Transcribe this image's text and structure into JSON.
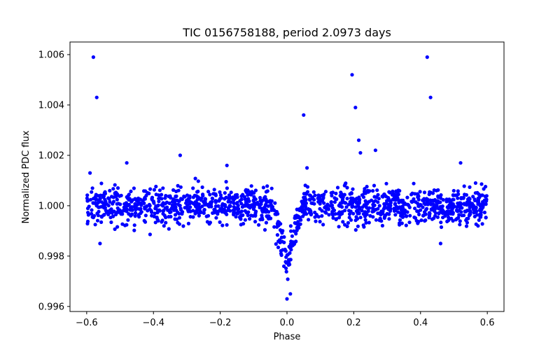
{
  "chart_data": {
    "type": "scatter",
    "title": "TIC 0156758188, period 2.0973 days",
    "xlabel": "Phase",
    "ylabel": "Normalized PDC flux",
    "xlim": [
      -0.65,
      0.65
    ],
    "ylim": [
      0.9958,
      1.0065
    ],
    "xticks": [
      -0.6,
      -0.4,
      -0.2,
      0.0,
      0.2,
      0.4,
      0.6
    ],
    "xtick_labels": [
      "−0.6",
      "−0.4",
      "−0.2",
      "0.0",
      "0.2",
      "0.4",
      "0.6"
    ],
    "yticks": [
      0.996,
      0.998,
      1.0,
      1.002,
      1.004,
      1.006
    ],
    "ytick_labels": [
      "0.996",
      "0.998",
      "1.000",
      "1.002",
      "1.004",
      "1.006"
    ],
    "grid": false,
    "marker_color": "#0000ff",
    "model": {
      "x_range": [
        -0.6,
        0.6
      ],
      "period_phase": 0.4,
      "baseline": 1.0,
      "out_of_transit_spread": 0.0004,
      "transit_center": 0.0,
      "transit_depth": 0.0027,
      "transit_half_width": 0.05,
      "n_points": 1400
    },
    "outliers": [
      {
        "x": -0.58,
        "y": 1.0059
      },
      {
        "x": -0.57,
        "y": 1.0043
      },
      {
        "x": 0.42,
        "y": 1.0059
      },
      {
        "x": 0.43,
        "y": 1.0043
      },
      {
        "x": 0.195,
        "y": 1.0052
      },
      {
        "x": 0.205,
        "y": 1.0039
      },
      {
        "x": 0.05,
        "y": 1.0036
      },
      {
        "x": 0.215,
        "y": 1.0026
      },
      {
        "x": 0.22,
        "y": 1.0021
      },
      {
        "x": 0.265,
        "y": 1.0022
      },
      {
        "x": -0.32,
        "y": 1.002
      },
      {
        "x": -0.59,
        "y": 1.0013
      },
      {
        "x": 0.52,
        "y": 1.0017
      },
      {
        "x": -0.48,
        "y": 1.0017
      },
      {
        "x": -0.18,
        "y": 1.0016
      },
      {
        "x": 0.06,
        "y": 1.0015
      },
      {
        "x": -0.56,
        "y": 0.9985
      },
      {
        "x": 0.46,
        "y": 0.9985
      },
      {
        "x": 0.0,
        "y": 0.9963
      },
      {
        "x": 0.01,
        "y": 0.9965
      }
    ]
  }
}
